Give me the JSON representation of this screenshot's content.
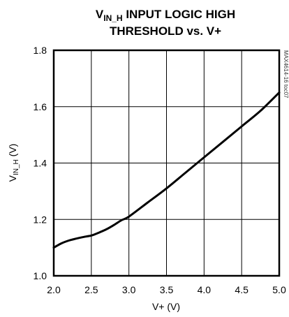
{
  "chart_data": {
    "type": "line",
    "title": {
      "line1_main": "V",
      "line1_sub": "IN_H",
      "line1_rest": " INPUT LOGIC HIGH",
      "line2": "THRESHOLD vs. V+"
    },
    "xlabel": "V+ (V)",
    "ylabel": {
      "main": "V",
      "sub": "IN_H",
      "rest": " (V)"
    },
    "xlim": [
      2.0,
      5.0
    ],
    "ylim": [
      1.0,
      1.8
    ],
    "x_ticks": [
      "2.0",
      "2.5",
      "3.0",
      "3.5",
      "4.0",
      "4.5",
      "5.0"
    ],
    "y_ticks": [
      "1.0",
      "1.2",
      "1.4",
      "1.6",
      "1.8"
    ],
    "grid": true,
    "side_label": "MAX4614-16 toc07",
    "series": [
      {
        "x": [
          2.0,
          2.1,
          2.2,
          2.3,
          2.4,
          2.5,
          2.6,
          2.7,
          2.8,
          2.9,
          3.0,
          3.25,
          3.5,
          3.75,
          4.0,
          4.25,
          4.5,
          4.75,
          5.0
        ],
        "y": [
          1.1,
          1.115,
          1.125,
          1.132,
          1.138,
          1.143,
          1.153,
          1.165,
          1.18,
          1.197,
          1.21,
          1.26,
          1.31,
          1.365,
          1.42,
          1.475,
          1.53,
          1.585,
          1.65
        ]
      }
    ]
  }
}
